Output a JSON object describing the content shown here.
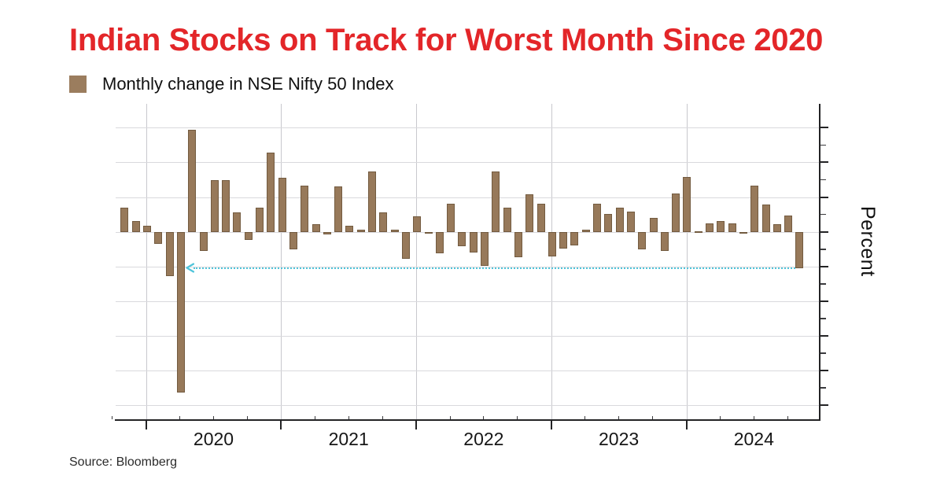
{
  "header": {
    "title": "Indian Stocks on Track for Worst Month Since 2020",
    "title_color": "#e32629"
  },
  "legend": {
    "label": "Monthly change in NSE Nifty 50 Index",
    "swatch_color": "#9b7d5e"
  },
  "footer": {
    "source": "Source: Bloomberg"
  },
  "chart_data": {
    "type": "bar",
    "title": "Monthly change in NSE Nifty 50 Index",
    "ylabel": "Percent",
    "bar_color": "#97795a",
    "grid": true,
    "ylim": [
      -27,
      18.5
    ],
    "y_major_ticks": [
      15,
      10,
      5,
      0,
      -5,
      -10,
      -15,
      -20,
      -25
    ],
    "y_minor_ticks": [
      12.5,
      7.5,
      2.5,
      -2.5,
      -7.5,
      -12.5,
      -17.5,
      -22.5
    ],
    "x_year_labels": [
      "2020",
      "2021",
      "2022",
      "2023",
      "2024"
    ],
    "x": [
      "Oct 2019",
      "Nov 2019",
      "Dec 2019",
      "Jan 2020",
      "Feb 2020",
      "Mar 2020",
      "Apr 2020",
      "May 2020",
      "Jun 2020",
      "Jul 2020",
      "Aug 2020",
      "Sep 2020",
      "Oct 2020",
      "Nov 2020",
      "Dec 2020",
      "Jan 2021",
      "Feb 2021",
      "Mar 2021",
      "Apr 2021",
      "May 2021",
      "Jun 2021",
      "Jul 2021",
      "Aug 2021",
      "Sep 2021",
      "Oct 2021",
      "Nov 2021",
      "Dec 2021",
      "Jan 2022",
      "Feb 2022",
      "Mar 2022",
      "Apr 2022",
      "May 2022",
      "Jun 2022",
      "Jul 2022",
      "Aug 2022",
      "Sep 2022",
      "Oct 2022",
      "Nov 2022",
      "Dec 2022",
      "Jan 2023",
      "Feb 2023",
      "Mar 2023",
      "Apr 2023",
      "May 2023",
      "Jun 2023",
      "Jul 2023",
      "Aug 2023",
      "Sep 2023",
      "Oct 2023",
      "Nov 2023",
      "Dec 2023",
      "Jan 2024",
      "Feb 2024",
      "Mar 2024",
      "Apr 2024",
      "May 2024",
      "Jun 2024",
      "Jul 2024",
      "Aug 2024",
      "Sep 2024",
      "Oct 2024"
    ],
    "values": [
      3.5,
      1.5,
      0.9,
      -1.7,
      -6.4,
      -23.2,
      14.7,
      -2.8,
      7.5,
      7.5,
      2.8,
      -1.2,
      3.5,
      11.4,
      7.8,
      -2.5,
      6.6,
      1.1,
      -0.4,
      6.5,
      0.9,
      0.3,
      8.7,
      2.8,
      0.3,
      -3.9,
      2.2,
      -0.1,
      -3.1,
      4.0,
      -2.1,
      -3.0,
      -4.9,
      8.7,
      3.5,
      -3.7,
      5.4,
      4.1,
      -3.5,
      -2.4,
      -2.0,
      0.3,
      4.1,
      2.6,
      3.5,
      2.9,
      -2.5,
      2.0,
      -2.8,
      5.5,
      7.9,
      0.0,
      1.2,
      1.6,
      1.2,
      -0.3,
      6.6,
      3.9,
      1.1,
      2.3,
      -5.2
    ],
    "annotation": {
      "style": "dotted",
      "arrow": "left",
      "y": -5.2,
      "from": "Apr 2020",
      "to": "Oct 2024",
      "color": "#4fc4da"
    }
  }
}
